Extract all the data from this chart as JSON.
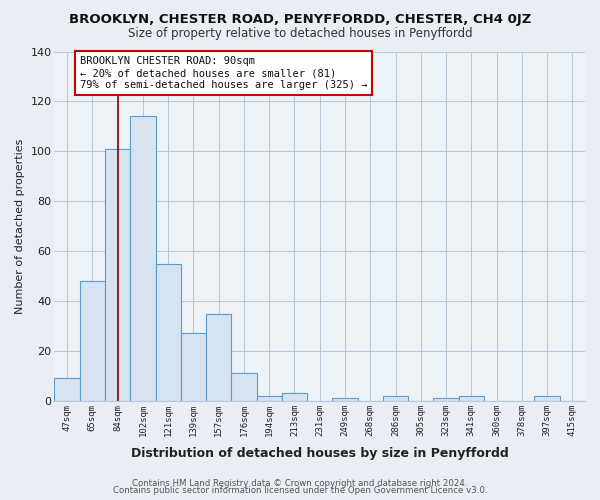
{
  "title": "BROOKLYN, CHESTER ROAD, PENYFFORDD, CHESTER, CH4 0JZ",
  "subtitle": "Size of property relative to detached houses in Penyffordd",
  "xlabel": "Distribution of detached houses by size in Penyffordd",
  "ylabel": "Number of detached properties",
  "bar_labels": [
    "47sqm",
    "65sqm",
    "84sqm",
    "102sqm",
    "121sqm",
    "139sqm",
    "157sqm",
    "176sqm",
    "194sqm",
    "213sqm",
    "231sqm",
    "249sqm",
    "268sqm",
    "286sqm",
    "305sqm",
    "323sqm",
    "341sqm",
    "360sqm",
    "378sqm",
    "397sqm",
    "415sqm"
  ],
  "bar_values": [
    9,
    48,
    101,
    114,
    55,
    27,
    35,
    11,
    2,
    3,
    0,
    1,
    0,
    2,
    0,
    1,
    2,
    0,
    0,
    2,
    0
  ],
  "bar_color": "#d6e4f0",
  "bar_edge_color": "#5b9bd5",
  "vline_x_idx": 2,
  "vline_color": "#8b0000",
  "annotation_line1": "BROOKLYN CHESTER ROAD: 90sqm",
  "annotation_line2": "← 20% of detached houses are smaller (81)",
  "annotation_line3": "79% of semi-detached houses are larger (325) →",
  "annotation_box_edge": "#cc0000",
  "ylim_max": 140,
  "yticks": [
    0,
    20,
    40,
    60,
    80,
    100,
    120,
    140
  ],
  "footer1": "Contains HM Land Registry data © Crown copyright and database right 2024.",
  "footer2": "Contains public sector information licensed under the Open Government Licence v3.0.",
  "bg_color": "#e8eef4",
  "plot_bg_color": "#edf2f7",
  "grid_color": "#b8c8d8",
  "title_color": "#111111",
  "subtitle_color": "#333333",
  "label_color": "#222222",
  "tick_color": "#222222",
  "footer_color": "#555555"
}
